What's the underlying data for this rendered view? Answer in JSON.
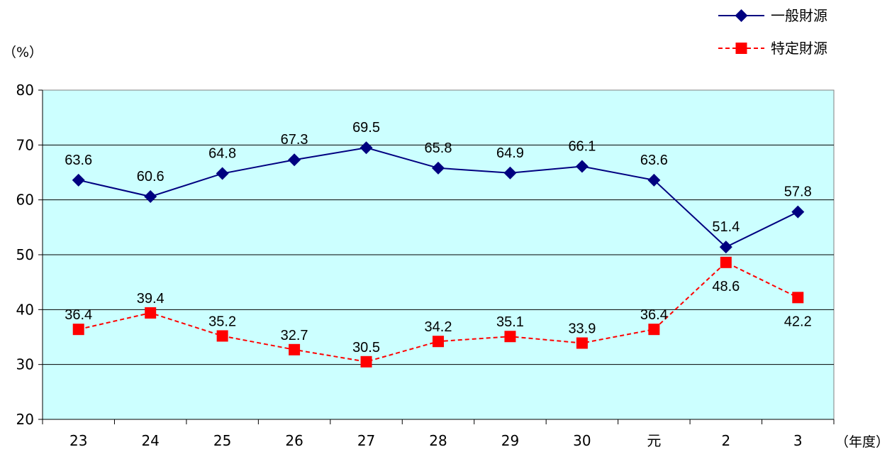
{
  "chart_data": {
    "type": "line",
    "y_unit_label": "（%）",
    "x_unit_label": "（年度）",
    "categories": [
      "23",
      "24",
      "25",
      "26",
      "27",
      "28",
      "29",
      "30",
      "元",
      "2",
      "3"
    ],
    "ylim": [
      20,
      80
    ],
    "yticks": [
      20,
      30,
      40,
      50,
      60,
      70,
      80
    ],
    "grid": true,
    "legend_position": "top-right",
    "plot_background": "#ccffff",
    "series": [
      {
        "name": "一般財源",
        "color": "#000080",
        "marker": "diamond",
        "line_style": "solid",
        "values": [
          63.6,
          60.6,
          64.8,
          67.3,
          69.5,
          65.8,
          64.9,
          66.1,
          63.6,
          51.4,
          57.8
        ],
        "labels": [
          "63.6",
          "60.6",
          "64.8",
          "67.3",
          "69.5",
          "65.8",
          "64.9",
          "66.1",
          "63.6",
          "51.4",
          "57.8"
        ]
      },
      {
        "name": "特定財源",
        "color": "#ff0000",
        "marker": "square",
        "line_style": "dashed",
        "values": [
          36.4,
          39.4,
          35.2,
          32.7,
          30.5,
          34.2,
          35.1,
          33.9,
          36.4,
          48.6,
          42.2
        ],
        "labels": [
          "36.4",
          "39.4",
          "35.2",
          "32.7",
          "30.5",
          "34.2",
          "35.1",
          "33.9",
          "36.4",
          "48.6",
          "42.2"
        ]
      }
    ]
  }
}
